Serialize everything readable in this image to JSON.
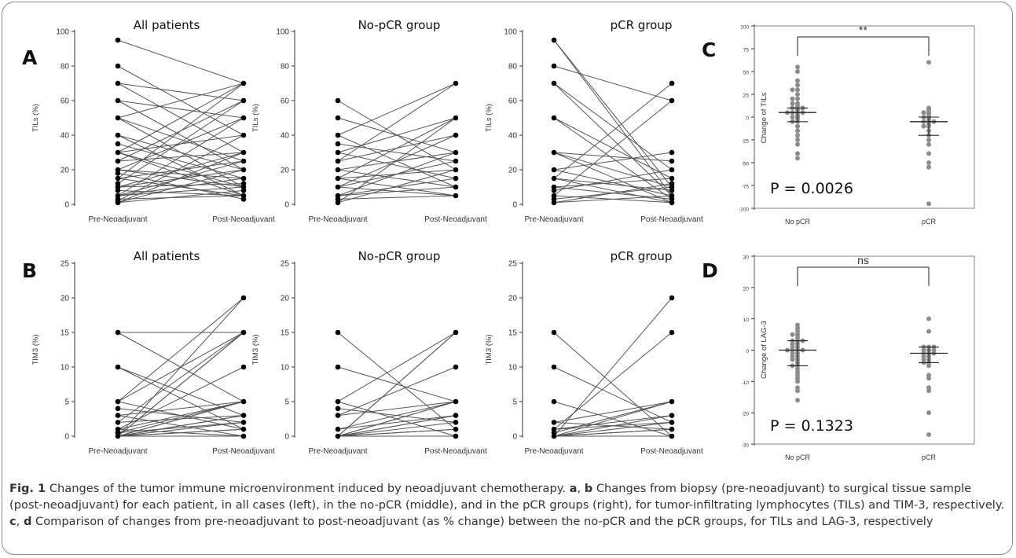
{
  "caption": {
    "fig_label": "Fig. 1",
    "p1": " Changes of the tumor immune microenvironment induced by neoadjuvant chemotherapy. ",
    "a": "a",
    "sep1": ", ",
    "b": "b",
    "p2": " Changes from biopsy (pre-neoadjuvant) to surgical tissue sample (post-neoadjuvant) for each patient, in all cases (left), in the no-pCR (middle), and in the pCR groups (right), for tumor-infiltrating lymphocytes (TILs) and TIM-3, respectively. ",
    "c": "c",
    "sep2": ", ",
    "d": "d",
    "p3": " Comparison of changes from pre-neoadjuvant to post-neoadjuvant (as % change) between the no-pCR and the pCR groups, for TILs and LAG-3, respectively"
  },
  "chart_data": [
    {
      "id": "A1",
      "type": "line",
      "panel_letter": "A",
      "title": "All patients",
      "categories": [
        "Pre-Neoadjuvant",
        "Post-Neoadjuvant"
      ],
      "ylabel": "TILs (%)",
      "ylim": [
        0,
        100
      ],
      "yticks": [
        0,
        20,
        40,
        60,
        80,
        100
      ],
      "pairs": [
        [
          95,
          70
        ],
        [
          80,
          40
        ],
        [
          70,
          60
        ],
        [
          70,
          30
        ],
        [
          60,
          50
        ],
        [
          60,
          20
        ],
        [
          50,
          70
        ],
        [
          50,
          25
        ],
        [
          50,
          10
        ],
        [
          40,
          20
        ],
        [
          40,
          5
        ],
        [
          35,
          15
        ],
        [
          30,
          40
        ],
        [
          30,
          10
        ],
        [
          30,
          5
        ],
        [
          30,
          70
        ],
        [
          25,
          60
        ],
        [
          25,
          30
        ],
        [
          20,
          50
        ],
        [
          20,
          10
        ],
        [
          20,
          15
        ],
        [
          15,
          25
        ],
        [
          15,
          5
        ],
        [
          15,
          70
        ],
        [
          10,
          30
        ],
        [
          10,
          20
        ],
        [
          10,
          12
        ],
        [
          8,
          5
        ],
        [
          5,
          50
        ],
        [
          5,
          15
        ],
        [
          5,
          10
        ],
        [
          5,
          25
        ],
        [
          3,
          5
        ],
        [
          2,
          40
        ],
        [
          1,
          20
        ],
        [
          1,
          30
        ],
        [
          1,
          8
        ],
        [
          12,
          60
        ],
        [
          18,
          3
        ]
      ]
    },
    {
      "id": "A2",
      "type": "line",
      "title": "No-pCR group",
      "categories": [
        "Pre-Neoadjuvant",
        "Post-Neoadjuvant"
      ],
      "ylabel": "TILs (%)",
      "ylim": [
        0,
        100
      ],
      "yticks": [
        0,
        20,
        40,
        60,
        80,
        100
      ],
      "pairs": [
        [
          60,
          20
        ],
        [
          50,
          30
        ],
        [
          40,
          70
        ],
        [
          40,
          10
        ],
        [
          35,
          25
        ],
        [
          30,
          50
        ],
        [
          30,
          15
        ],
        [
          25,
          40
        ],
        [
          25,
          70
        ],
        [
          20,
          30
        ],
        [
          20,
          10
        ],
        [
          15,
          50
        ],
        [
          15,
          5
        ],
        [
          15,
          20
        ],
        [
          10,
          25
        ],
        [
          10,
          40
        ],
        [
          10,
          5
        ],
        [
          5,
          15
        ],
        [
          5,
          30
        ],
        [
          5,
          10
        ],
        [
          3,
          5
        ],
        [
          1,
          20
        ],
        [
          1,
          50
        ]
      ]
    },
    {
      "id": "A3",
      "type": "line",
      "title": "pCR group",
      "categories": [
        "Pre-Neoadjuvant",
        "Post-Neoadjuvant"
      ],
      "ylabel": "TILs (%)",
      "ylim": [
        0,
        100
      ],
      "yticks": [
        0,
        20,
        40,
        60,
        80,
        100
      ],
      "pairs": [
        [
          95,
          10
        ],
        [
          95,
          5
        ],
        [
          80,
          60
        ],
        [
          70,
          20
        ],
        [
          70,
          5
        ],
        [
          50,
          15
        ],
        [
          50,
          3
        ],
        [
          30,
          25
        ],
        [
          30,
          10
        ],
        [
          30,
          1
        ],
        [
          20,
          30
        ],
        [
          20,
          5
        ],
        [
          15,
          70
        ],
        [
          15,
          8
        ],
        [
          15,
          1
        ],
        [
          10,
          15
        ],
        [
          10,
          3
        ],
        [
          8,
          20
        ],
        [
          5,
          60
        ],
        [
          5,
          1
        ],
        [
          3,
          10
        ],
        [
          1,
          5
        ],
        [
          1,
          12
        ]
      ]
    },
    {
      "id": "C",
      "type": "scatter",
      "panel_letter": "C",
      "categories": [
        "No pCR",
        "pCR"
      ],
      "ylabel": "Change of TILs",
      "ylim": [
        -100,
        100
      ],
      "yticks": [
        -100,
        -75,
        -50,
        -25,
        0,
        25,
        50,
        75,
        100
      ],
      "annotation": "**",
      "pvalue": "P = 0.0026",
      "groups": [
        {
          "name": "No pCR",
          "median": 5,
          "q1": -5,
          "q3": 10,
          "values": [
            55,
            50,
            40,
            35,
            30,
            30,
            25,
            20,
            20,
            15,
            15,
            12,
            10,
            10,
            10,
            8,
            5,
            5,
            5,
            5,
            2,
            0,
            0,
            -2,
            -5,
            -5,
            -10,
            -15,
            -20,
            -25,
            -30,
            -40,
            -45
          ]
        },
        {
          "name": "pCR",
          "median": -5,
          "q1": -20,
          "q3": 0,
          "values": [
            60,
            10,
            8,
            5,
            5,
            3,
            0,
            0,
            -2,
            -5,
            -5,
            -5,
            -8,
            -10,
            -10,
            -15,
            -20,
            -25,
            -30,
            -40,
            -50,
            -55,
            -95
          ]
        }
      ]
    },
    {
      "id": "B1",
      "type": "line",
      "panel_letter": "B",
      "title": "All patients",
      "categories": [
        "Pre-Neoadjuvant",
        "Post-Neoadjuvant"
      ],
      "ylabel": "TIM3 (%)",
      "ylim": [
        0,
        25
      ],
      "yticks": [
        0,
        5,
        10,
        15,
        20,
        25
      ],
      "pairs": [
        [
          15,
          15
        ],
        [
          15,
          5
        ],
        [
          10,
          1
        ],
        [
          10,
          3
        ],
        [
          5,
          20
        ],
        [
          5,
          1
        ],
        [
          5,
          15
        ],
        [
          4,
          2
        ],
        [
          3,
          0
        ],
        [
          3,
          5
        ],
        [
          2,
          3
        ],
        [
          2,
          15
        ],
        [
          1,
          5
        ],
        [
          1,
          10
        ],
        [
          1,
          0
        ],
        [
          0,
          20
        ],
        [
          0,
          15
        ],
        [
          0,
          5
        ],
        [
          0,
          3
        ],
        [
          0,
          2
        ],
        [
          0,
          1
        ],
        [
          0,
          0
        ],
        [
          0,
          15
        ],
        [
          0,
          5
        ],
        [
          0.5,
          2
        ],
        [
          0.5,
          5
        ],
        [
          0,
          1
        ],
        [
          0,
          3
        ]
      ]
    },
    {
      "id": "B2",
      "type": "line",
      "title": "No-pCR group",
      "categories": [
        "Pre-Neoadjuvant",
        "Post-Neoadjuvant"
      ],
      "ylabel": "TIM3 (%)",
      "ylim": [
        0,
        25
      ],
      "yticks": [
        0,
        5,
        10,
        15,
        20,
        25
      ],
      "pairs": [
        [
          15,
          1
        ],
        [
          10,
          5
        ],
        [
          5,
          15
        ],
        [
          5,
          0
        ],
        [
          4,
          2
        ],
        [
          3,
          5
        ],
        [
          3,
          10
        ],
        [
          1,
          3
        ],
        [
          1,
          5
        ],
        [
          0,
          15
        ],
        [
          0,
          15
        ],
        [
          0,
          5
        ],
        [
          0,
          3
        ],
        [
          0,
          2
        ],
        [
          0,
          1
        ],
        [
          0,
          0
        ],
        [
          0,
          5
        ],
        [
          0,
          3
        ],
        [
          0,
          1
        ]
      ]
    },
    {
      "id": "B3",
      "type": "line",
      "title": "pCR group",
      "categories": [
        "Pre-Neoadjuvant",
        "Post-Neoadjuvant"
      ],
      "ylabel": "TIM3 (%)",
      "ylim": [
        0,
        25
      ],
      "yticks": [
        0,
        5,
        10,
        15,
        20,
        25
      ],
      "pairs": [
        [
          15,
          0
        ],
        [
          10,
          2
        ],
        [
          5,
          0
        ],
        [
          2,
          5
        ],
        [
          2,
          1
        ],
        [
          1,
          3
        ],
        [
          1,
          15
        ],
        [
          1,
          2
        ],
        [
          0.5,
          5
        ],
        [
          0,
          20
        ],
        [
          0,
          1
        ],
        [
          0,
          3
        ],
        [
          0,
          0
        ],
        [
          0,
          2
        ],
        [
          0,
          5
        ],
        [
          0,
          1
        ]
      ]
    },
    {
      "id": "D",
      "type": "scatter",
      "panel_letter": "D",
      "categories": [
        "No pCR",
        "pCR"
      ],
      "ylabel": "Change of LAG-3",
      "ylim": [
        -30,
        30
      ],
      "yticks": [
        -30,
        -20,
        -10,
        0,
        10,
        20,
        30
      ],
      "annotation": "ns",
      "pvalue": "P = 0.1323",
      "groups": [
        {
          "name": "No pCR",
          "median": 0,
          "q1": -5,
          "q3": 3,
          "values": [
            8,
            7,
            6,
            5,
            5,
            4,
            3,
            3,
            3,
            2,
            2,
            1,
            1,
            0,
            0,
            0,
            0,
            -1,
            -1,
            -2,
            -2,
            -3,
            -3,
            -4,
            -5,
            -5,
            -6,
            -7,
            -8,
            -9,
            -10,
            -12,
            -13,
            -16
          ]
        },
        {
          "name": "pCR",
          "median": -1,
          "q1": -4,
          "q3": 1,
          "values": [
            10,
            6,
            1,
            1,
            1,
            0,
            0,
            0,
            -1,
            -1,
            -1,
            -2,
            -2,
            -3,
            -3,
            -4,
            -4,
            -5,
            -8,
            -9,
            -12,
            -13,
            -20,
            -27
          ]
        }
      ]
    }
  ]
}
